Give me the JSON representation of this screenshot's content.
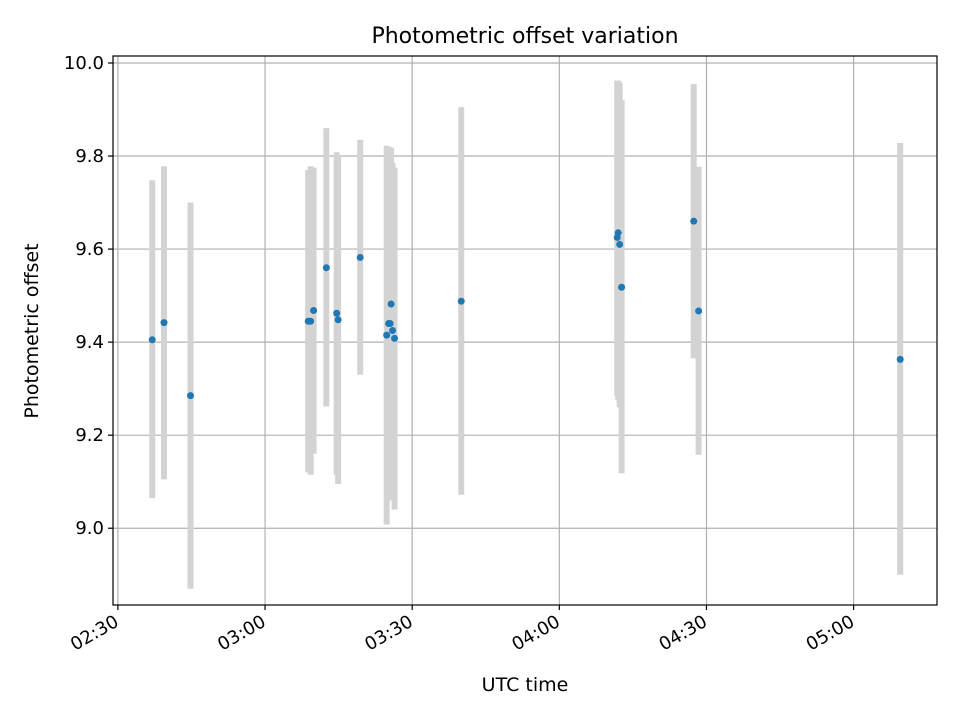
{
  "chart_data": {
    "type": "scatter",
    "title": "Photometric offset variation",
    "xlabel": "UTC time",
    "ylabel": "Photometric offset",
    "x_is_time": true,
    "xlim": [
      "02:29",
      "05:17"
    ],
    "ylim": [
      8.835,
      10.015
    ],
    "grid": true,
    "x_ticks": [
      "02:30",
      "03:00",
      "03:30",
      "04:00",
      "04:30",
      "05:00"
    ],
    "y_ticks": [
      9.0,
      9.2,
      9.4,
      9.6,
      9.8,
      10.0
    ],
    "y_tick_labels": [
      "9.0",
      "9.2",
      "9.4",
      "9.6",
      "9.8",
      "10.0"
    ],
    "colors": {
      "point": "#1f77b4",
      "errorbar": "#d3d3d3",
      "grid": "#b0b0b0"
    },
    "series": [
      {
        "points": [
          {
            "t": "02:37:00",
            "y": 9.405,
            "ylo": 9.065,
            "yhi": 9.748
          },
          {
            "t": "02:39:24",
            "y": 9.442,
            "ylo": 9.105,
            "yhi": 9.778
          },
          {
            "t": "02:44:48",
            "y": 9.285,
            "ylo": 8.87,
            "yhi": 9.7
          },
          {
            "t": "03:08:48",
            "y": 9.445,
            "ylo": 9.12,
            "yhi": 9.77
          },
          {
            "t": "03:09:18",
            "y": 9.445,
            "ylo": 9.115,
            "yhi": 9.778
          },
          {
            "t": "03:09:54",
            "y": 9.468,
            "ylo": 9.16,
            "yhi": 9.775
          },
          {
            "t": "03:12:30",
            "y": 9.56,
            "ylo": 9.262,
            "yhi": 9.86
          },
          {
            "t": "03:14:36",
            "y": 9.462,
            "ylo": 9.115,
            "yhi": 9.808
          },
          {
            "t": "03:14:54",
            "y": 9.448,
            "ylo": 9.095,
            "yhi": 9.802
          },
          {
            "t": "03:19:24",
            "y": 9.582,
            "ylo": 9.33,
            "yhi": 9.835
          },
          {
            "t": "03:24:48",
            "y": 9.415,
            "ylo": 9.008,
            "yhi": 9.822
          },
          {
            "t": "03:25:12",
            "y": 9.44,
            "ylo": 9.06,
            "yhi": 9.82
          },
          {
            "t": "03:25:30",
            "y": 9.44,
            "ylo": 9.075,
            "yhi": 9.818
          },
          {
            "t": "03:25:42",
            "y": 9.482,
            "ylo": 9.1,
            "yhi": 9.818
          },
          {
            "t": "03:26:00",
            "y": 9.425,
            "ylo": 9.07,
            "yhi": 9.785
          },
          {
            "t": "03:26:24",
            "y": 9.408,
            "ylo": 9.04,
            "yhi": 9.775
          },
          {
            "t": "03:40:00",
            "y": 9.488,
            "ylo": 9.072,
            "yhi": 9.905
          },
          {
            "t": "04:11:48",
            "y": 9.625,
            "ylo": 9.285,
            "yhi": 9.962
          },
          {
            "t": "04:12:00",
            "y": 9.635,
            "ylo": 9.275,
            "yhi": 9.962
          },
          {
            "t": "04:12:18",
            "y": 9.61,
            "ylo": 9.26,
            "yhi": 9.958
          },
          {
            "t": "04:12:42",
            "y": 9.518,
            "ylo": 9.118,
            "yhi": 9.92
          },
          {
            "t": "04:27:24",
            "y": 9.66,
            "ylo": 9.365,
            "yhi": 9.955
          },
          {
            "t": "04:28:24",
            "y": 9.467,
            "ylo": 9.158,
            "yhi": 9.777
          },
          {
            "t": "05:09:30",
            "y": 9.363,
            "ylo": 8.9,
            "yhi": 9.828
          }
        ]
      }
    ]
  }
}
